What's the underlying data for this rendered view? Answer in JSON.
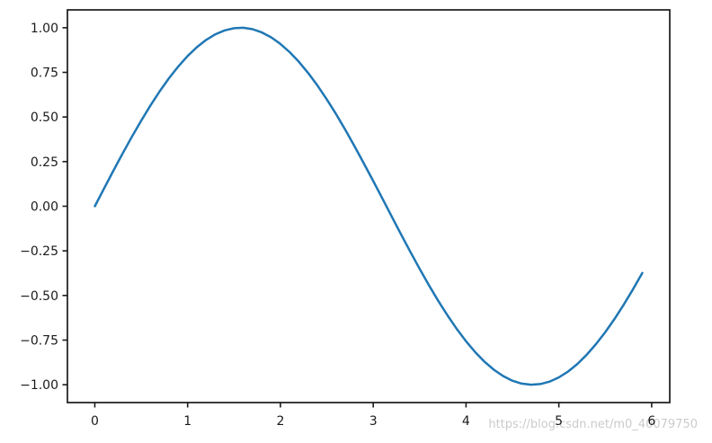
{
  "figure": {
    "background_color": "#ffffff"
  },
  "watermark": {
    "text": "https://blog.csdn.net/m0_40079750",
    "color": "#cbcbcb"
  },
  "chart_data": {
    "type": "line",
    "title": "",
    "xlabel": "",
    "ylabel": "",
    "grid": false,
    "legend": "none",
    "line_color": "#1f77b4",
    "line_width": 2.5,
    "spine_color": "#1a1a1a",
    "xlim": [
      -0.295,
      6.195
    ],
    "ylim": [
      -1.1,
      1.1
    ],
    "xticks": {
      "values": [
        0,
        1,
        2,
        3,
        4,
        5,
        6
      ],
      "labels": [
        "0",
        "1",
        "2",
        "3",
        "4",
        "5",
        "6"
      ]
    },
    "yticks": {
      "values": [
        1.0,
        0.75,
        0.5,
        0.25,
        0.0,
        -0.25,
        -0.5,
        -0.75,
        -1.0
      ],
      "labels": [
        "1.00",
        "0.75",
        "0.50",
        "0.25",
        "0.00",
        "−0.25",
        "−0.50",
        "−0.75",
        "−1.00"
      ]
    },
    "series": [
      {
        "x": [
          0.0,
          0.1,
          0.2,
          0.3,
          0.4,
          0.5,
          0.6,
          0.7,
          0.8,
          0.9,
          1.0,
          1.1,
          1.2,
          1.3,
          1.4,
          1.5,
          1.6,
          1.7,
          1.8,
          1.9,
          2.0,
          2.1,
          2.2,
          2.3,
          2.4,
          2.5,
          2.6,
          2.7,
          2.8,
          2.9,
          3.0,
          3.1,
          3.2,
          3.3,
          3.4,
          3.5,
          3.6,
          3.7,
          3.8,
          3.9,
          4.0,
          4.1,
          4.2,
          4.3,
          4.4,
          4.5,
          4.6,
          4.7,
          4.8,
          4.9,
          5.0,
          5.1,
          5.2,
          5.3,
          5.4,
          5.5,
          5.6,
          5.7,
          5.8,
          5.9
        ],
        "y": [
          0.0,
          0.0998,
          0.1987,
          0.2955,
          0.3894,
          0.4794,
          0.5646,
          0.6442,
          0.7174,
          0.7833,
          0.8415,
          0.8912,
          0.932,
          0.9636,
          0.9854,
          0.9975,
          0.9996,
          0.9917,
          0.9738,
          0.9463,
          0.9093,
          0.8632,
          0.8085,
          0.7457,
          0.6755,
          0.5985,
          0.5155,
          0.4274,
          0.335,
          0.2392,
          0.1411,
          0.0416,
          -0.0584,
          -0.1577,
          -0.2555,
          -0.3508,
          -0.4425,
          -0.5298,
          -0.6119,
          -0.6878,
          -0.7568,
          -0.8183,
          -0.8716,
          -0.9162,
          -0.9516,
          -0.9775,
          -0.9937,
          -0.9999,
          -0.9962,
          -0.9825,
          -0.9589,
          -0.9258,
          -0.8835,
          -0.8323,
          -0.7728,
          -0.7055,
          -0.6313,
          -0.5507,
          -0.4646,
          -0.3739
        ]
      }
    ]
  }
}
